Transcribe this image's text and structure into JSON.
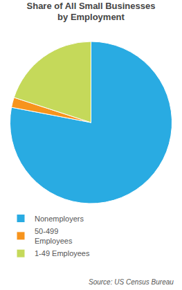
{
  "chart_data": {
    "type": "pie",
    "title": "Share of All Small Businesses\nby Employment",
    "categories": [
      "Nonemployers",
      "50-499\nEmployees",
      "1-49 Employees"
    ],
    "values": [
      78,
      2,
      20
    ],
    "colors": [
      "#29ABE2",
      "#F7941D",
      "#C5D95A"
    ],
    "legend": "bottom",
    "annotations": [
      "Source: US Census Bureau"
    ]
  }
}
